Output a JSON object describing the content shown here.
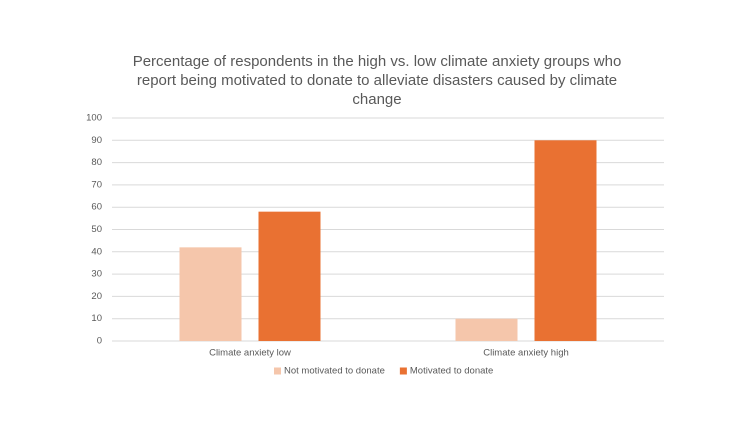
{
  "chart_data": {
    "type": "bar",
    "title": "Percentage of respondents in the high vs. low climate anxiety groups who report being motivated to donate to alleviate disasters caused by climate change",
    "categories": [
      "Climate anxiety low",
      "Climate anxiety high"
    ],
    "series": [
      {
        "name": "Not motivated to donate",
        "color": "#f5c6ab",
        "values": [
          42,
          10
        ]
      },
      {
        "name": "Motivated to donate",
        "color": "#e97132",
        "values": [
          58,
          90
        ]
      }
    ],
    "ylim": [
      0,
      100
    ],
    "yticks": [
      0,
      10,
      20,
      30,
      40,
      50,
      60,
      70,
      80,
      90,
      100
    ],
    "grid": true,
    "legend": "bottom"
  }
}
